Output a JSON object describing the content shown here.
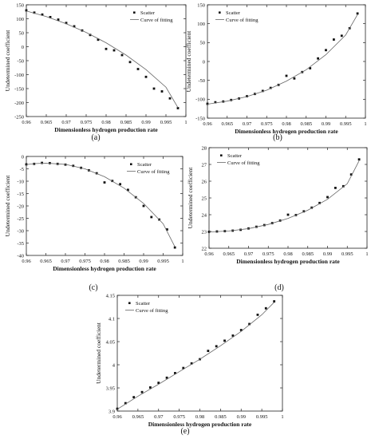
{
  "chart_data": [
    {
      "panel_label": "(a)",
      "type": "scatter",
      "xlabel": "Dimensionless hydrogen production rate",
      "ylabel": "Undetermined coefficient",
      "xlim": [
        0.96,
        1.0
      ],
      "ylim": [
        -250,
        150
      ],
      "xticks": [
        "0.96",
        "0.965",
        "0.97",
        "0.975",
        "0.98",
        "0.985",
        "0.99",
        "0.995",
        "1"
      ],
      "yticks": [
        "-250",
        "-200",
        "-150",
        "-100",
        "-50",
        "0",
        "50",
        "100",
        "150"
      ],
      "legend": {
        "position": "top-right",
        "scatter_label": "Scatter",
        "line_label": "Curve of fitting"
      },
      "series": [
        {
          "name": "Scatter",
          "kind": "points",
          "x": [
            0.96,
            0.962,
            0.964,
            0.966,
            0.968,
            0.97,
            0.972,
            0.974,
            0.976,
            0.978,
            0.98,
            0.982,
            0.984,
            0.986,
            0.988,
            0.99,
            0.992,
            0.994,
            0.996,
            0.998
          ],
          "y": [
            130,
            122,
            115,
            106,
            97,
            85,
            73,
            58,
            42,
            25,
            -8,
            -13,
            -30,
            -55,
            -80,
            -108,
            -150,
            -160,
            -185,
            -220
          ]
        },
        {
          "name": "Curve of fitting",
          "kind": "line",
          "x": [
            0.96,
            0.965,
            0.97,
            0.975,
            0.98,
            0.985,
            0.99,
            0.995,
            0.998
          ],
          "y": [
            128,
            108,
            82,
            51,
            14,
            -30,
            -82,
            -145,
            -218
          ]
        }
      ]
    },
    {
      "panel_label": "(b)",
      "type": "scatter",
      "xlabel": "Dimensionless hydrogen production rate",
      "ylabel": "Undetermined coefficient",
      "xlim": [
        0.96,
        1.0
      ],
      "ylim": [
        -150,
        150
      ],
      "xticks": [
        "0.96",
        "0.965",
        "0.97",
        "0.975",
        "0.98",
        "0.985",
        "0.99",
        "0.995",
        "1"
      ],
      "yticks": [
        "-150",
        "-100",
        "-50",
        "0",
        "50",
        "100",
        "150"
      ],
      "legend": {
        "position": "top-left",
        "scatter_label": "Scatter",
        "line_label": "Curve of fitting"
      },
      "series": [
        {
          "name": "Scatter",
          "kind": "points",
          "x": [
            0.96,
            0.962,
            0.964,
            0.966,
            0.968,
            0.97,
            0.972,
            0.974,
            0.976,
            0.978,
            0.98,
            0.982,
            0.984,
            0.986,
            0.988,
            0.99,
            0.992,
            0.994,
            0.996,
            0.998
          ],
          "y": [
            -112,
            -108,
            -106,
            -102,
            -98,
            -92,
            -86,
            -78,
            -70,
            -62,
            -38,
            -45,
            -28,
            -18,
            8,
            30,
            58,
            68,
            88,
            127
          ]
        },
        {
          "name": "Curve of fitting",
          "kind": "line",
          "x": [
            0.96,
            0.965,
            0.97,
            0.975,
            0.98,
            0.985,
            0.99,
            0.995,
            0.998
          ],
          "y": [
            -113,
            -105,
            -93,
            -76,
            -52,
            -22,
            18,
            70,
            124
          ]
        }
      ]
    },
    {
      "panel_label": "(c)",
      "type": "scatter",
      "xlabel": "Dimensionless hydrogen production rate",
      "ylabel": "Undetermined coefficient",
      "xlim": [
        0.96,
        1.0
      ],
      "ylim": [
        -40,
        0
      ],
      "xticks": [
        "0.96",
        "0.965",
        "0.97",
        "0.975",
        "0.98",
        "0.985",
        "0.99",
        "0.995",
        "1"
      ],
      "yticks": [
        "-40",
        "-35",
        "-30",
        "-25",
        "-20",
        "-15",
        "-10",
        "-5",
        "0"
      ],
      "legend": {
        "position": "top-right",
        "scatter_label": "Scatter",
        "line_label": "Curve of fitting"
      },
      "series": [
        {
          "name": "Scatter",
          "kind": "points",
          "x": [
            0.96,
            0.962,
            0.964,
            0.966,
            0.968,
            0.97,
            0.972,
            0.974,
            0.976,
            0.978,
            0.98,
            0.982,
            0.984,
            0.986,
            0.988,
            0.99,
            0.992,
            0.994,
            0.996,
            0.998
          ],
          "y": [
            -3.2,
            -3.0,
            -2.6,
            -2.7,
            -3.0,
            -3.3,
            -3.8,
            -4.6,
            -5.6,
            -6.8,
            -10.5,
            -9.9,
            -11.2,
            -13.5,
            -16.5,
            -20.0,
            -24.5,
            -25.5,
            -29.5,
            -36.8
          ]
        },
        {
          "name": "Curve of fitting",
          "kind": "line",
          "x": [
            0.96,
            0.962,
            0.965,
            0.97,
            0.975,
            0.98,
            0.985,
            0.99,
            0.995,
            0.998
          ],
          "y": [
            -3.3,
            -2.9,
            -2.7,
            -3.2,
            -5.0,
            -8.2,
            -12.8,
            -19.0,
            -27.2,
            -36.5
          ]
        }
      ]
    },
    {
      "panel_label": "(d)",
      "type": "scatter",
      "xlabel": "Dimensionless hydrogen production rate",
      "ylabel": "Undetermined coefficient",
      "xlim": [
        0.96,
        1.0
      ],
      "ylim": [
        22,
        28
      ],
      "xticks": [
        "0.96",
        "0.965",
        "0.97",
        "0.975",
        "0.98",
        "0.985",
        "0.99",
        "0.995",
        "1"
      ],
      "yticks": [
        "22",
        "23",
        "24",
        "25",
        "26",
        "27",
        "28"
      ],
      "legend": {
        "position": "top-left",
        "scatter_label": "Scatter",
        "line_label": "Curve of fitting"
      },
      "series": [
        {
          "name": "Scatter",
          "kind": "points",
          "x": [
            0.96,
            0.962,
            0.964,
            0.966,
            0.968,
            0.97,
            0.972,
            0.974,
            0.976,
            0.978,
            0.98,
            0.982,
            0.984,
            0.986,
            0.988,
            0.99,
            0.992,
            0.994,
            0.996,
            0.998
          ],
          "y": [
            22.98,
            23.0,
            23.02,
            23.05,
            23.1,
            23.18,
            23.28,
            23.38,
            23.5,
            23.65,
            24.0,
            23.98,
            24.2,
            24.42,
            24.7,
            25.05,
            25.6,
            25.7,
            26.4,
            27.3
          ]
        },
        {
          "name": "Curve of fitting",
          "kind": "line",
          "x": [
            0.96,
            0.965,
            0.97,
            0.975,
            0.98,
            0.985,
            0.99,
            0.995,
            0.998
          ],
          "y": [
            22.97,
            23.03,
            23.17,
            23.42,
            23.78,
            24.27,
            24.92,
            25.85,
            27.22
          ]
        }
      ]
    },
    {
      "panel_label": "(e)",
      "type": "scatter",
      "xlabel": "Dimensionless hydrogen production rate",
      "ylabel": "Undetermined coefficient",
      "xlim": [
        0.96,
        1.0
      ],
      "ylim": [
        3.9,
        4.15
      ],
      "xticks": [
        "0.96",
        "0.965",
        "0.97",
        "0.975",
        "0.98",
        "0.985",
        "0.99",
        "0.995",
        "1"
      ],
      "yticks": [
        "3.9",
        "3.95",
        "4",
        "4.05",
        "4.1",
        "4.15"
      ],
      "legend": {
        "position": "top-left",
        "scatter_label": "Scatter",
        "line_label": "Curve of fitting"
      },
      "series": [
        {
          "name": "Scatter",
          "kind": "points",
          "x": [
            0.96,
            0.962,
            0.964,
            0.966,
            0.968,
            0.97,
            0.972,
            0.974,
            0.976,
            0.978,
            0.98,
            0.982,
            0.984,
            0.986,
            0.988,
            0.99,
            0.992,
            0.994,
            0.996,
            0.998
          ],
          "y": [
            3.905,
            3.917,
            3.93,
            3.941,
            3.951,
            3.961,
            3.972,
            3.982,
            3.993,
            4.003,
            4.012,
            4.03,
            4.04,
            4.052,
            4.063,
            4.075,
            4.088,
            4.108,
            4.122,
            4.137
          ]
        },
        {
          "name": "Curve of fitting",
          "kind": "line",
          "x": [
            0.96,
            0.965,
            0.97,
            0.975,
            0.98,
            0.985,
            0.99,
            0.995,
            0.998
          ],
          "y": [
            3.904,
            3.932,
            3.958,
            3.985,
            4.012,
            4.041,
            4.072,
            4.108,
            4.135
          ]
        }
      ]
    }
  ]
}
